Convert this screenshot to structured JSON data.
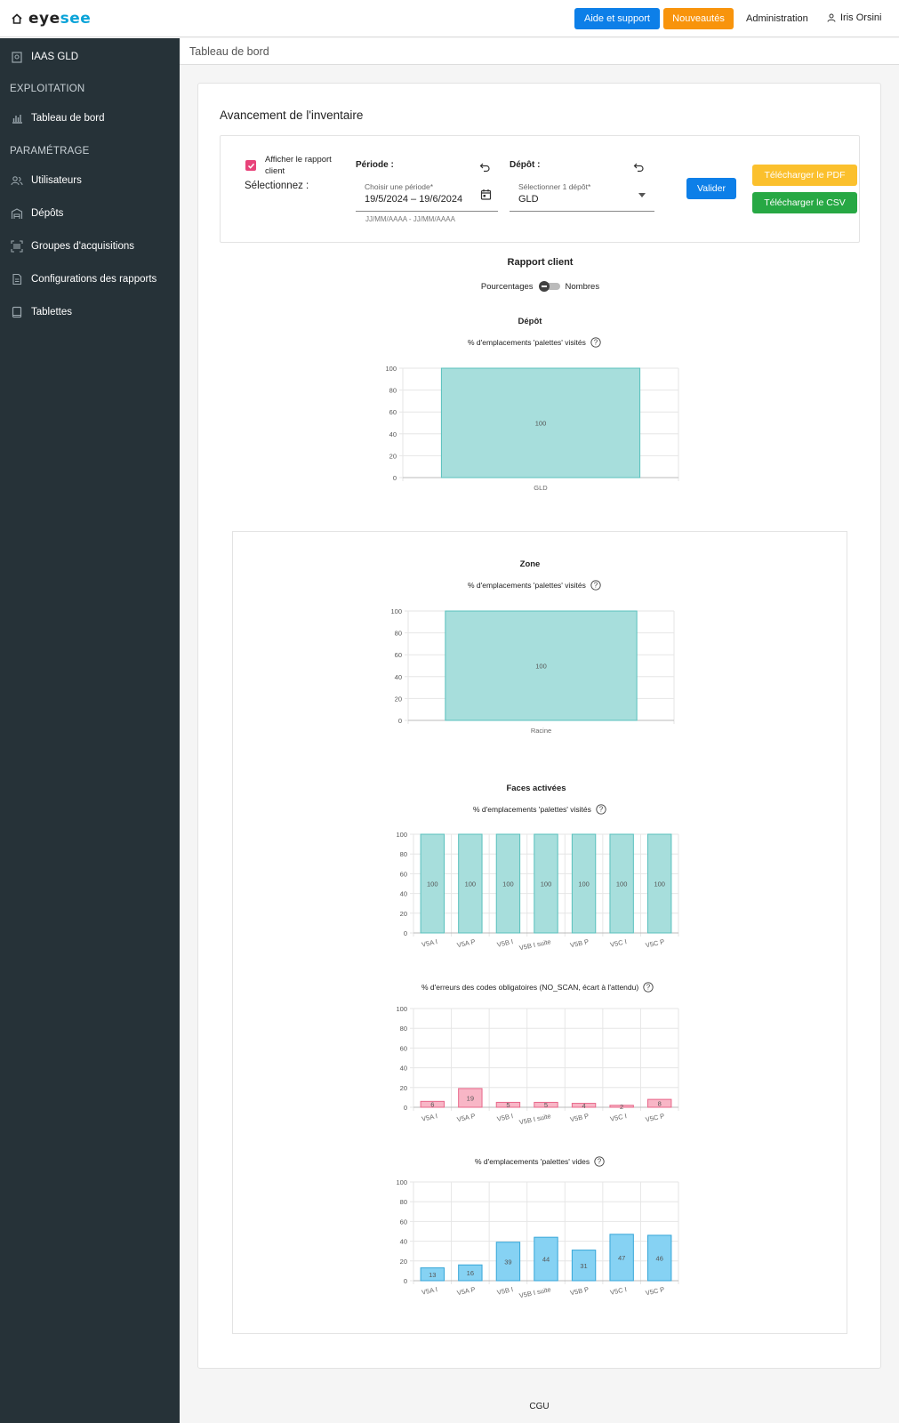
{
  "header": {
    "logo_eye": "eye",
    "logo_see": "see",
    "help_label": "Aide et support",
    "news_label": "Nouveautés",
    "admin_label": "Administration",
    "user_name": "Iris Orsini"
  },
  "sidebar": {
    "site": "IAAS GLD",
    "section_exploitation": "EXPLOITATION",
    "dashboard": "Tableau de bord",
    "section_parametrage": "PARAMÉTRAGE",
    "users": "Utilisateurs",
    "depots": "Dépôts",
    "groups": "Groupes d'acquisitions",
    "reports_config": "Configurations des rapports",
    "tablets": "Tablettes"
  },
  "breadcrumb": "Tableau de bord",
  "card": {
    "title": "Avancement de l'inventaire",
    "show_report_label": "Afficher le rapport client",
    "select_label": "Sélectionnez :",
    "periode_heading": "Période :",
    "periode_hint": "Choisir une période*",
    "periode_start": "19/5/2024",
    "periode_sep": "–",
    "periode_end": "19/6/2024",
    "periode_format": "JJ/MM/AAAA - JJ/MM/AAAA",
    "depot_heading": "Dépôt :",
    "depot_hint": "Sélectionner 1 dépôt*",
    "depot_value": "GLD",
    "validate_label": "Valider",
    "pdf_label": "Télécharger le PDF",
    "csv_label": "Télécharger le CSV",
    "report_title": "Rapport client",
    "toggle_left": "Pourcentages",
    "toggle_right": "Nombres"
  },
  "colors": {
    "teal_fill": "#a7dedc",
    "teal_stroke": "#58c0bd",
    "pink_fill": "#f8b6c6",
    "pink_stroke": "#e8678a",
    "blue_fill": "#86d2f3",
    "blue_stroke": "#36a6d8"
  },
  "chart_data": [
    {
      "type": "bar",
      "title": "Dépôt",
      "subtitle": "% d'emplacements 'palettes' visités",
      "categories": [
        "GLD"
      ],
      "values": [
        100
      ],
      "ylim": [
        0,
        100
      ],
      "yticks": [
        0,
        20,
        40,
        60,
        80,
        100
      ],
      "grid": true
    },
    {
      "type": "bar",
      "title": "Zone",
      "subtitle": "% d'emplacements 'palettes' visités",
      "categories": [
        "Racine"
      ],
      "values": [
        100
      ],
      "ylim": [
        0,
        100
      ],
      "yticks": [
        0,
        20,
        40,
        60,
        80,
        100
      ],
      "grid": true
    },
    {
      "type": "bar",
      "title": "Faces activées",
      "subtitle": "% d'emplacements 'palettes' visités",
      "categories": [
        "V5A I",
        "V5A P",
        "V5B I",
        "V5B I suite",
        "V5B P",
        "V5C I",
        "V5C P"
      ],
      "values": [
        100,
        100,
        100,
        100,
        100,
        100,
        100
      ],
      "ylim": [
        0,
        100
      ],
      "yticks": [
        0,
        20,
        40,
        60,
        80,
        100
      ],
      "grid": true
    },
    {
      "type": "bar",
      "title": "",
      "subtitle": "% d'erreurs des codes obligatoires (NO_SCAN, écart à l'attendu)",
      "categories": [
        "V5A I",
        "V5A P",
        "V5B I",
        "V5B I suite",
        "V5B P",
        "V5C I",
        "V5C P"
      ],
      "values": [
        6,
        19,
        5,
        5,
        4,
        2,
        8
      ],
      "ylim": [
        0,
        100
      ],
      "yticks": [
        0,
        20,
        40,
        60,
        80,
        100
      ],
      "grid": true
    },
    {
      "type": "bar",
      "title": "",
      "subtitle": "% d'emplacements 'palettes' vides",
      "categories": [
        "V5A I",
        "V5A P",
        "V5B I",
        "V5B I suite",
        "V5B P",
        "V5C I",
        "V5C P"
      ],
      "values": [
        13,
        16,
        39,
        44,
        31,
        47,
        46
      ],
      "ylim": [
        0,
        100
      ],
      "yticks": [
        0,
        20,
        40,
        60,
        80,
        100
      ],
      "grid": true
    }
  ],
  "footer": "CGU"
}
